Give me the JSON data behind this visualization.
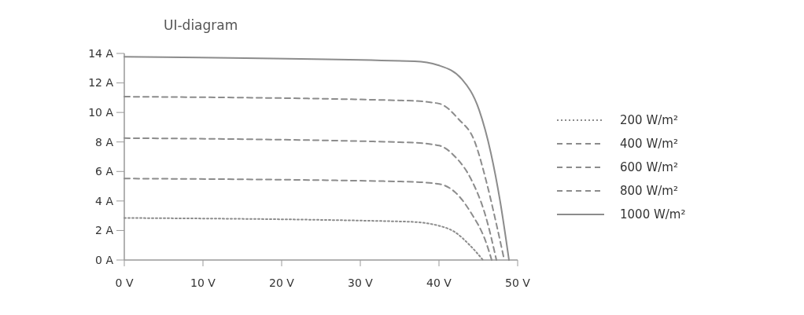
{
  "chart_data": {
    "type": "line",
    "title": "UI-diagram",
    "xlim": [
      0,
      50
    ],
    "ylim": [
      0,
      14
    ],
    "xticks": [
      {
        "value": 0,
        "label": "0 V"
      },
      {
        "value": 10,
        "label": "10 V"
      },
      {
        "value": 20,
        "label": "20 V"
      },
      {
        "value": 30,
        "label": "30 V"
      },
      {
        "value": 40,
        "label": "40 V"
      },
      {
        "value": 50,
        "label": "50 V"
      }
    ],
    "yticks": [
      {
        "value": 0,
        "label": "0 A"
      },
      {
        "value": 2,
        "label": "2 A"
      },
      {
        "value": 4,
        "label": "4 A"
      },
      {
        "value": 6,
        "label": "6 A"
      },
      {
        "value": 8,
        "label": "8 A"
      },
      {
        "value": 10,
        "label": "10 A"
      },
      {
        "value": 12,
        "label": "12 A"
      },
      {
        "value": 14,
        "label": "14 A"
      }
    ],
    "legend": "right",
    "grid": false,
    "marker": "none",
    "series": [
      {
        "name": "200 W/m²",
        "color": "#8c8c8c",
        "line_style": "dotted",
        "x": [
          0,
          36,
          40,
          42,
          44,
          45.6
        ],
        "values": [
          2.85,
          2.6,
          2.32,
          1.9,
          0.96,
          0
        ]
      },
      {
        "name": "400 W/m²",
        "color": "#8c8c8c",
        "line_style": "dashed",
        "x": [
          0,
          36,
          40,
          42,
          44,
          46,
          46.7
        ],
        "values": [
          5.52,
          5.31,
          5.15,
          4.62,
          3.26,
          1.17,
          0
        ]
      },
      {
        "name": "600 W/m²",
        "color": "#8c8c8c",
        "line_style": "dashed",
        "x": [
          0,
          36,
          40,
          42,
          44,
          46,
          47.3
        ],
        "values": [
          8.26,
          7.97,
          7.76,
          7.03,
          5.56,
          2.85,
          0
        ]
      },
      {
        "name": "800 W/m²",
        "color": "#8c8c8c",
        "line_style": "dashed",
        "x": [
          0,
          36,
          40,
          42.5,
          44.5,
          46,
          47.3,
          48.3
        ],
        "values": [
          11.07,
          10.8,
          10.6,
          9.54,
          8.08,
          5.36,
          2.43,
          0
        ]
      },
      {
        "name": "1000 W/m²",
        "color": "#8c8c8c",
        "line_style": "solid",
        "x": [
          0,
          36.9,
          39.9,
          42.9,
          45.1,
          46.6,
          47.8,
          48.9
        ],
        "values": [
          13.77,
          13.47,
          13.2,
          12.26,
          10.17,
          7.24,
          3.9,
          0
        ]
      }
    ]
  }
}
